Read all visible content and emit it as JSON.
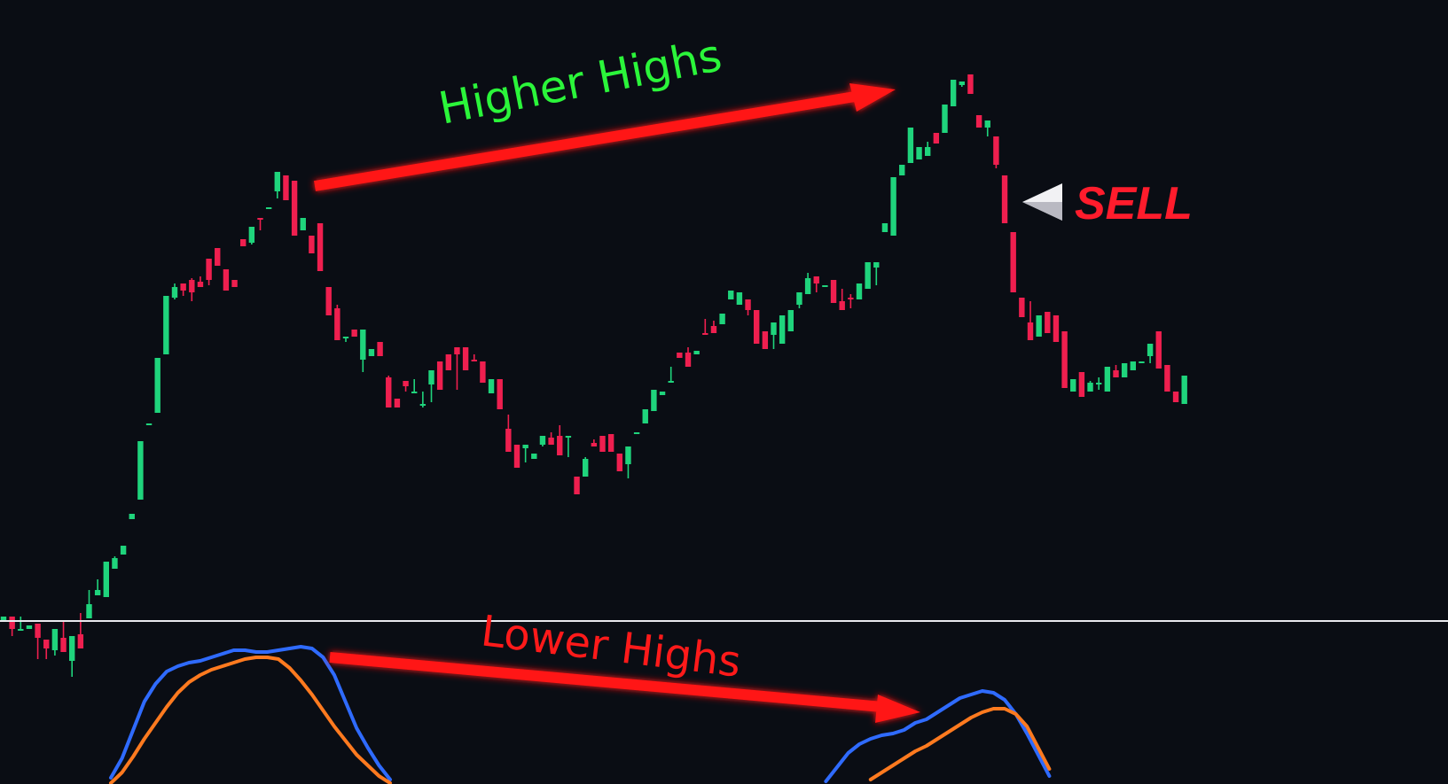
{
  "chart_data": [
    {
      "type": "candlestick",
      "pane": "price",
      "colors": {
        "up": "#1fd47c",
        "down": "#ef1f4f"
      },
      "ohlc": [
        [
          -6,
          -4,
          -1,
          -3
        ],
        [
          -3,
          -13,
          -14,
          -10
        ],
        [
          -10,
          -3,
          -6,
          -10
        ],
        [
          -10,
          -8,
          -9,
          -8
        ],
        [
          -7,
          -23,
          -27,
          -15
        ],
        [
          -16,
          -18,
          -27,
          -21
        ],
        [
          -22,
          -27,
          -25,
          -10
        ],
        [
          -15,
          -5,
          -12,
          -23
        ],
        [
          -28,
          -20,
          -37,
          -14
        ],
        [
          -13,
          -1,
          -4,
          -21
        ],
        [
          -4,
          12,
          7,
          4
        ],
        [
          9,
          18,
          20,
          12
        ],
        [
          8,
          21,
          21,
          28
        ],
        [
          24,
          31,
          31,
          30
        ],
        [
          32,
          37,
          41,
          37
        ],
        [
          52,
          50,
          61,
          55
        ],
        [
          63,
          74,
          83,
          96
        ],
        [
          106,
          98,
          111,
          106
        ],
        [
          112,
          119,
          124,
          143
        ],
        [
          145,
          162,
          164,
          178
        ],
        [
          177,
          185,
          176,
          183
        ],
        [
          185,
          181,
          178,
          181
        ],
        [
          187,
          188,
          175,
          180
        ],
        [
          186,
          189,
          189,
          183
        ],
        [
          199,
          190,
          184,
          187
        ],
        [
          205,
          197,
          203,
          195
        ],
        [
          193,
          183,
          194,
          181
        ],
        [
          187,
          184,
          183,
          183
        ],
        [
          210,
          200,
          213,
          206
        ],
        [
          208,
          207,
          207,
          217
        ],
        [
          222,
          210,
          215,
          221
        ],
        [
          227,
          221,
          232,
          228
        ],
        [
          237,
          237,
          233,
          248
        ],
        [
          246,
          246,
          236,
          232
        ],
        [
          243,
          241,
          242,
          212
        ],
        [
          215,
          207,
          216,
          222
        ],
        [
          212,
          206,
          203,
          202
        ],
        [
          219,
          210,
          214,
          192
        ],
        [
          183,
          182,
          169,
          167
        ],
        [
          171,
          173,
          166,
          153
        ],
        [
          155,
          148,
          152,
          155
        ],
        [
          159,
          140,
          164,
          155
        ],
        [
          142,
          142,
          135,
          159
        ],
        [
          144,
          141,
          146,
          148
        ],
        [
          152,
          130,
          148,
          144
        ],
        [
          132,
          133,
          132,
          115
        ],
        [
          120,
          107,
          119,
          115
        ],
        [
          130,
          115,
          124,
          127
        ],
        [
          123,
          131,
          125,
          124
        ],
        [
          117,
          124,
          115,
          117
        ],
        [
          128,
          131,
          118,
          136
        ],
        [
          141,
          128,
          143,
          125
        ],
        [
          145,
          136,
          141,
          136
        ],
        [
          149,
          133,
          125,
          145
        ],
        [
          149,
          143,
          152,
          136
        ],
        [
          142,
          145,
          145,
          141
        ],
        [
          141,
          122,
          145,
          129
        ],
        [
          123,
          130,
          127,
          131
        ],
        [
          131,
          112,
          137,
          114
        ],
        [
          103,
          111,
          115,
          90
        ],
        [
          94,
          94,
          96,
          81
        ],
        [
          92,
          79,
          84,
          94
        ],
        [
          86,
          89,
          92,
          89
        ],
        [
          94,
          95,
          93,
          99
        ],
        [
          98,
          101,
          100,
          94
        ],
        [
          99,
          105,
          101,
          88
        ],
        [
          99,
          86,
          87,
          99
        ],
        [
          76,
          68,
          73,
          66
        ],
        [
          76,
          87,
          84,
          86
        ],
        [
          95,
          97,
          98,
          93
        ],
        [
          99,
          97,
          101,
          90
        ],
        [
          100,
          94,
          93,
          90
        ],
        [
          89,
          84,
          81,
          79
        ],
        [
          83,
          82,
          75,
          93
        ],
        [
          101,
          100,
          103,
          101
        ],
        [
          106,
          105,
          108,
          114
        ],
        [
          113,
          121,
          124,
          125
        ],
        [
          122,
          114,
          124,
          124
        ],
        [
          130,
          138,
          136,
          130
        ],
        [
          146,
          146,
          151,
          143
        ],
        [
          146,
          149,
          149,
          138
        ],
        [
          145,
          147,
          155,
          147
        ],
        [
          157,
          165,
          161,
          156
        ],
        [
          161,
          164,
          163,
          157
        ],
        [
          162,
          164,
          173,
          168
        ],
        [
          176,
          164,
          181,
          181
        ],
        [
          173,
          169,
          183,
          180
        ],
        [
          176,
          176,
          167,
          170
        ],
        [
          170,
          155,
          174,
          151
        ],
        [
          158,
          153,
          155,
          148
        ],
        [
          156,
          151,
          148,
          163
        ],
        [
          151,
          144,
          158,
          167
        ],
        [
          158,
          164,
          164,
          170
        ],
        [
          173,
          172,
          171,
          180
        ],
        [
          179,
          191,
          193,
          188
        ],
        [
          189,
          188,
          180,
          185
        ],
        [
          183,
          180,
          189,
          184
        ],
        [
          187,
          178,
          175,
          174
        ],
        [
          175,
          182,
          178,
          170
        ],
        [
          177,
          179,
          171,
          176
        ],
        [
          176,
          181,
          181,
          185
        ],
        [
          182,
          182,
          194,
          197
        ],
        [
          194,
          189,
          184,
          197
        ],
        [
          214,
          213,
          215,
          219
        ],
        [
          212,
          218,
          225,
          245
        ],
        [
          246,
          241,
          250,
          252
        ],
        [
          253,
          246,
          256,
          273
        ],
        [
          255,
          245,
          255,
          262
        ],
        [
          257,
          265,
          272,
          262
        ],
        [
          270,
          266,
          269,
          264
        ],
        [
          270,
          281,
          284,
          286
        ],
        [
          285,
          289,
          292,
          300
        ],
        [
          297,
          297,
          296,
          299
        ],
        [
          303,
          301,
          307,
          292
        ],
        [
          280,
          271,
          295,
          273
        ],
        [
          273,
          273,
          268,
          277
        ],
        [
          268,
          267,
          250,
          252
        ],
        [
          246,
          214,
          239,
          219
        ],
        [
          214,
          208,
          206,
          180
        ],
        [
          177,
          174,
          178,
          166
        ],
        [
          163,
          175,
          167,
          153
        ],
        [
          155,
          164,
          155,
          167
        ],
        [
          169,
          166,
          164,
          157
        ],
        [
          167,
          156,
          174,
          152
        ],
        [
          158,
          149,
          141,
          126
        ],
        [
          124,
          126,
          138,
          131
        ],
        [
          135,
          135,
          132,
          121
        ],
        [
          124,
          130,
          133,
          129
        ],
        [
          129,
          132,
          125,
          129
        ],
        [
          124,
          134,
          133,
          138
        ],
        [
          136,
          139,
          141,
          132
        ],
        [
          132,
          138,
          134,
          140
        ],
        [
          136,
          137,
          141,
          141
        ],
        [
          140,
          140,
          144,
          141
        ],
        [
          144,
          151,
          140,
          151
        ],
        [
          158,
          152,
          139,
          137
        ],
        [
          139,
          139,
          134,
          124
        ],
        [
          124,
          112,
          121,
          118
        ],
        [
          117,
          119,
          120,
          133
        ]
      ]
    },
    {
      "type": "line",
      "pane": "oscillator",
      "series": [
        {
          "color": "#2f6bff",
          "values": [
            5,
            16,
            32,
            48,
            58,
            65,
            68,
            70,
            71,
            73,
            75,
            77,
            77,
            76,
            76,
            77,
            78,
            79,
            78,
            73,
            63,
            48,
            33,
            22,
            12,
            4,
            null,
            null,
            null,
            null,
            null,
            null,
            null,
            null,
            null,
            null,
            null,
            null,
            null,
            null,
            null,
            null,
            null,
            null,
            null,
            null,
            null,
            null,
            null,
            null,
            null,
            null,
            null,
            null,
            null,
            null,
            null,
            null,
            null,
            null,
            null,
            null,
            null,
            null,
            3,
            11,
            19,
            24,
            27,
            29,
            30,
            32,
            36,
            38,
            42,
            46,
            50,
            52,
            54,
            53,
            49,
            41,
            30,
            18,
            6
          ]
        },
        {
          "color": "#ff7a1f",
          "values": [
            2,
            8,
            17,
            27,
            36,
            45,
            53,
            59,
            63,
            66,
            68,
            70,
            72,
            73,
            73,
            72,
            67,
            60,
            52,
            43,
            34,
            26,
            18,
            12,
            6,
            2,
            null,
            null,
            null,
            null,
            null,
            null,
            null,
            null,
            null,
            null,
            null,
            null,
            null,
            null,
            null,
            null,
            null,
            null,
            null,
            null,
            null,
            null,
            null,
            null,
            null,
            null,
            null,
            null,
            null,
            null,
            null,
            null,
            null,
            null,
            null,
            null,
            null,
            null,
            null,
            null,
            null,
            null,
            4,
            8,
            12,
            16,
            20,
            23,
            27,
            31,
            35,
            39,
            42,
            44,
            44,
            41,
            34,
            22,
            10
          ]
        }
      ]
    }
  ],
  "annotations": {
    "top_text": "Higher Highs",
    "top_text_color": "#2bf53a",
    "bottom_text": "Lower Highs",
    "bottom_text_color": "#ff1a1a",
    "arrow_color": "#ff1414",
    "signal_text": "SELL",
    "signal_color": "#ff1c2c",
    "marker_color": "#f1f1f4"
  }
}
